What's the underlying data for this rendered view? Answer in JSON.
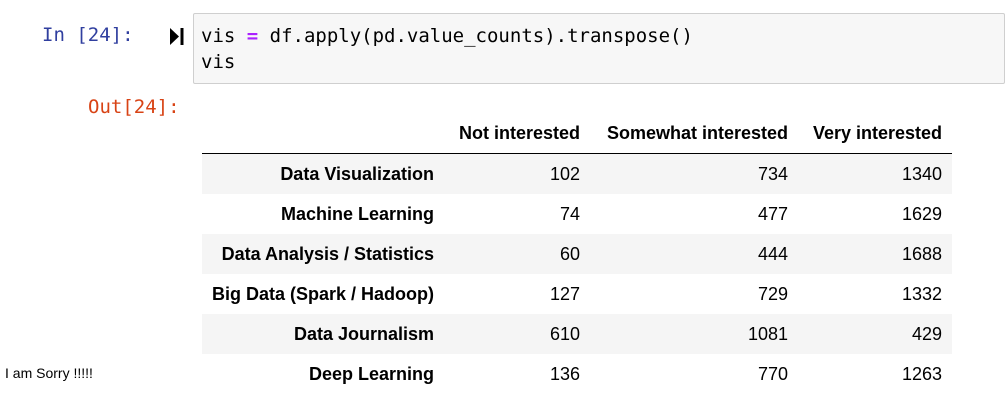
{
  "cell": {
    "in_prompt": "In [24]:",
    "code": {
      "line1": {
        "before": "vis ",
        "operator": "=",
        "after": " df.apply(pd.value_counts).transpose()"
      },
      "line2": "vis"
    },
    "out_prompt": "Out[24]:"
  },
  "table": {
    "columns": [
      "",
      "Not interested",
      "Somewhat interested",
      "Very interested"
    ],
    "rows": [
      {
        "label": "Data Visualization",
        "values": [
          "102",
          "734",
          "1340"
        ]
      },
      {
        "label": "Machine Learning",
        "values": [
          "74",
          "477",
          "1629"
        ]
      },
      {
        "label": "Data Analysis / Statistics",
        "values": [
          "60",
          "444",
          "1688"
        ]
      },
      {
        "label": "Big Data (Spark / Hadoop)",
        "values": [
          "127",
          "729",
          "1332"
        ]
      },
      {
        "label": "Data Journalism",
        "values": [
          "610",
          "1081",
          "429"
        ]
      },
      {
        "label": "Deep Learning",
        "values": [
          "136",
          "770",
          "1263"
        ]
      }
    ]
  },
  "overlay_text": "I am Sorry !!!!!",
  "icons": {
    "run": "run-cell-icon"
  },
  "colors": {
    "in_prompt": "#303f9f",
    "out_prompt": "#d84315",
    "operator": "#aa22ff",
    "input_bg": "#f7f7f7"
  }
}
